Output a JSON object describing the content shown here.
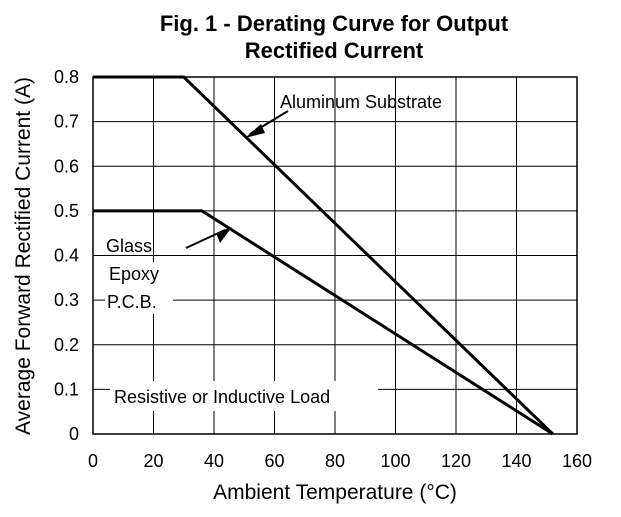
{
  "chart_data": {
    "type": "line",
    "title_line1": "Fig. 1 - Derating Curve for Output",
    "title_line2": "Rectified Current",
    "xlabel": "Ambient Temperature (°C)",
    "ylabel": "Average Forward Rectified Current (A)",
    "xlim": [
      0,
      160
    ],
    "ylim": [
      0,
      0.8
    ],
    "grid": true,
    "x_ticks": [
      "0",
      "20",
      "40",
      "60",
      "80",
      "100",
      "120",
      "140",
      "160"
    ],
    "y_ticks": [
      "0.8",
      "0.7",
      "0.6",
      "0.5",
      "0.4",
      "0.3",
      "0.2",
      "0.1",
      "0"
    ],
    "series": [
      {
        "name": "Aluminum Substrate",
        "x": [
          0,
          30,
          152
        ],
        "y": [
          0.8,
          0.8,
          0
        ]
      },
      {
        "name": "Glass Epoxy P.C.B.",
        "x": [
          0,
          36,
          152
        ],
        "y": [
          0.5,
          0.5,
          0
        ]
      }
    ],
    "annotations": {
      "aluminum": "Aluminum Substrate",
      "glass_line1": "Glass",
      "glass_line2": "Epoxy",
      "glass_line3": "P.C.B.",
      "load": "Resistive or Inductive Load"
    }
  }
}
